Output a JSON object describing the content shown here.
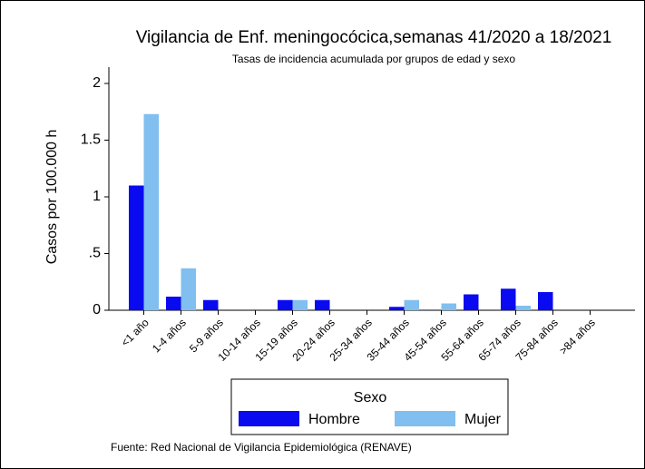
{
  "chart_data": {
    "type": "bar",
    "title": "Vigilancia de Enf. meningocócica,semanas 41/2020 a 18/2021",
    "subtitle": "Tasas de incidencia acumulada por grupos de edad y sexo",
    "y_label": "Casos por 100.000 h",
    "categories": [
      "<1 año",
      "1-4 años",
      "5-9 años",
      "10-14 años",
      "15-19 años",
      "20-24 años",
      "25-34 años",
      "35-44 años",
      "45-54 años",
      "55-64 años",
      "65-74 años",
      "75-84 años",
      ">84 años"
    ],
    "series": [
      {
        "name": "Hombre",
        "color": "#0a0af0",
        "values": [
          1.1,
          0.12,
          0.09,
          0,
          0.09,
          0.09,
          0,
          0.03,
          0,
          0.14,
          0.19,
          0.16,
          0
        ]
      },
      {
        "name": "Mujer",
        "color": "#80bfef",
        "values": [
          1.73,
          0.37,
          0,
          0,
          0.09,
          0,
          0,
          0.09,
          0.06,
          0,
          0.04,
          0,
          0
        ]
      }
    ],
    "ylim": [
      0,
      2
    ],
    "yticks": [
      0,
      {
        "value": 0.5,
        "label": ".5"
      },
      1,
      1.5,
      2
    ],
    "legend_title": "Sexo",
    "source": "Fuente: Red Nacional de Vigilancia Epidemiológica (RENAVE)"
  }
}
